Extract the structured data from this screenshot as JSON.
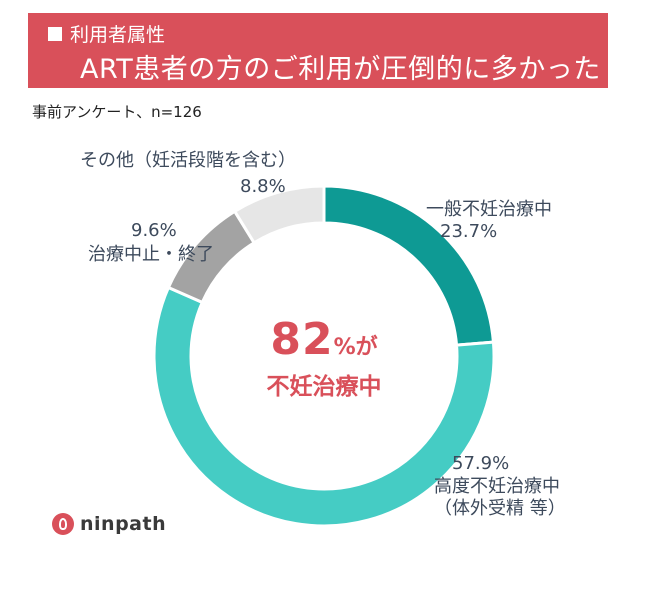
{
  "header": {
    "category_label": "利用者属性",
    "headline": "ART患者の方のご利用が圧倒的に多かった"
  },
  "survey_note": "事前アンケート、n=126",
  "center_text": {
    "value": "82",
    "suffix": "%が",
    "caption": "不妊治療中"
  },
  "logo_text": "ninpath",
  "chart_data": {
    "type": "pie",
    "variant": "donut",
    "title": "",
    "segments": [
      {
        "label": "一般不妊治療中",
        "value": 23.7,
        "value_label": "23.7%",
        "color": "#0e9a94"
      },
      {
        "label": "高度不妊治療中\n（体外受精 等）",
        "label_line1": "高度不妊治療中",
        "label_line2": "（体外受精 等）",
        "value": 57.9,
        "value_label": "57.9%",
        "color": "#45ccc4"
      },
      {
        "label": "治療中止・終了",
        "value": 9.6,
        "value_label": "9.6%",
        "color": "#a3a3a3"
      },
      {
        "label": "その他（妊活段階を含む）",
        "value": 8.8,
        "value_label": "8.8%",
        "color": "#e6e6e6"
      }
    ]
  }
}
